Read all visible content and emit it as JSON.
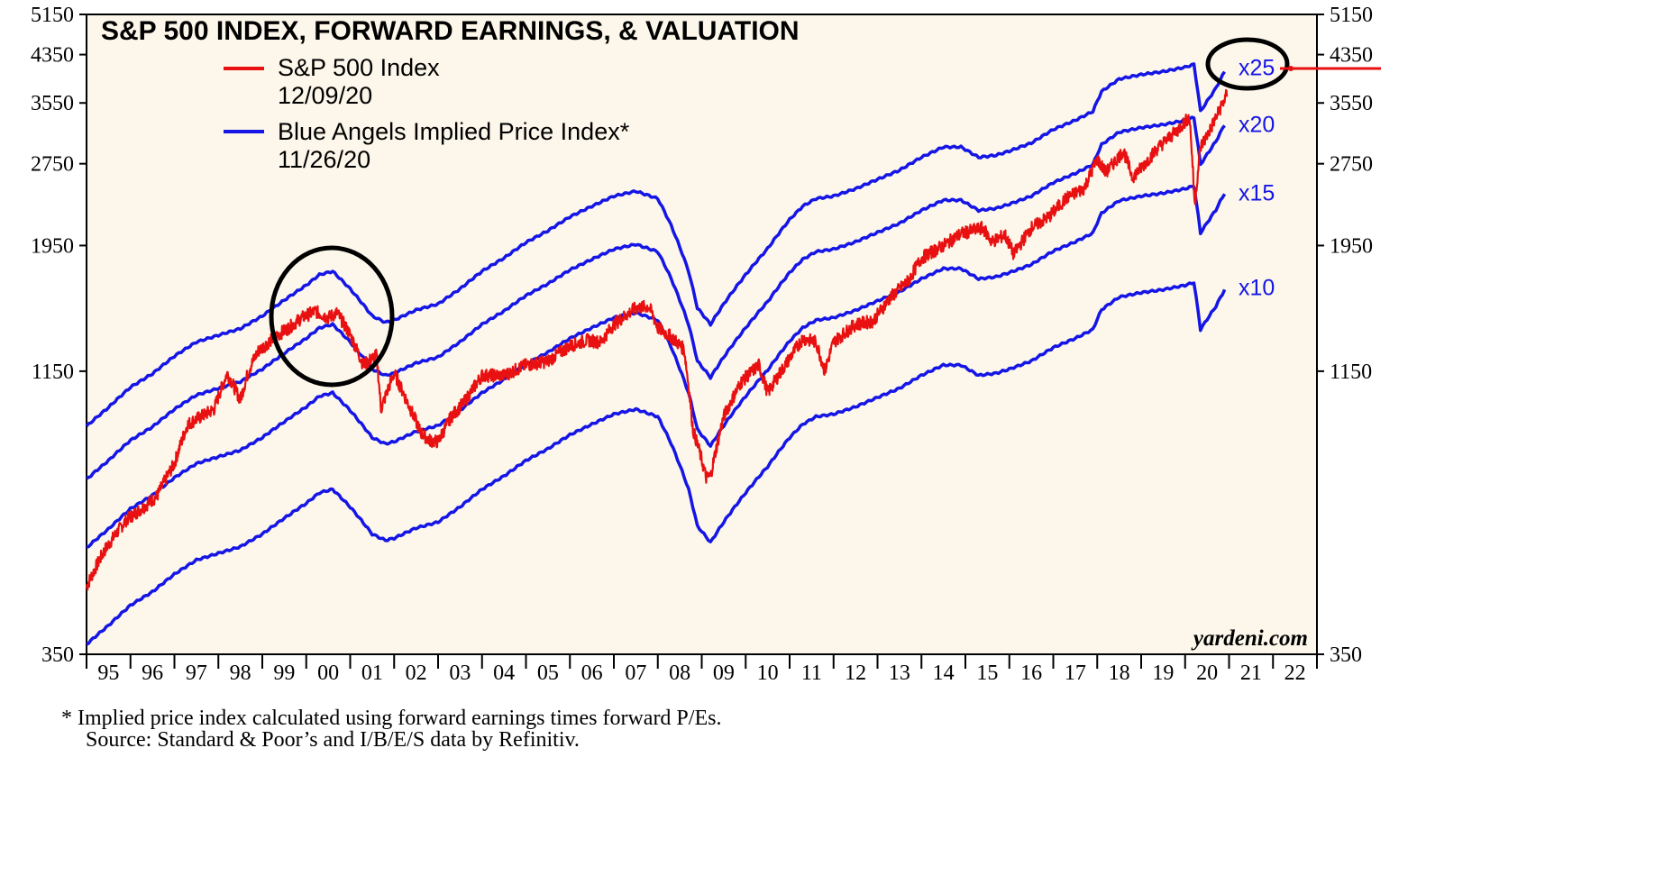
{
  "chart_data": {
    "type": "line",
    "title": "S&P 500 INDEX, FORWARD EARNINGS, & VALUATION",
    "y_scale": "log",
    "ylim": [
      350,
      5150
    ],
    "y_ticks": [
      "5150",
      "4350",
      "3550",
      "2750",
      "1950",
      "1150",
      "350"
    ],
    "x_range": [
      1995,
      2023
    ],
    "x_ticks": [
      "95",
      "96",
      "97",
      "98",
      "99",
      "00",
      "01",
      "02",
      "03",
      "04",
      "05",
      "06",
      "07",
      "08",
      "09",
      "10",
      "11",
      "12",
      "13",
      "14",
      "15",
      "16",
      "17",
      "18",
      "19",
      "20",
      "21",
      "22"
    ],
    "legend": [
      {
        "label": "S&P 500 Index",
        "date": "12/09/20",
        "color": "#e81010"
      },
      {
        "label": "Blue Angels Implied Price Index*",
        "date": "11/26/20",
        "color": "#1515e6"
      }
    ],
    "multiples": [
      "x25",
      "x20",
      "x15",
      "x10"
    ],
    "forward_earnings": {
      "x": [
        1995.0,
        1995.5,
        1996.0,
        1996.5,
        1997.0,
        1997.5,
        1998.0,
        1998.5,
        1999.0,
        1999.5,
        2000.0,
        2000.3,
        2000.6,
        2001.0,
        2001.5,
        2001.8,
        2002.0,
        2002.5,
        2003.0,
        2003.5,
        2004.0,
        2004.5,
        2005.0,
        2005.5,
        2006.0,
        2006.5,
        2007.0,
        2007.5,
        2008.0,
        2008.3,
        2008.7,
        2008.9,
        2009.2,
        2009.5,
        2010.0,
        2010.5,
        2011.0,
        2011.3,
        2011.6,
        2012.0,
        2012.5,
        2013.0,
        2013.5,
        2014.0,
        2014.5,
        2014.9,
        2015.3,
        2015.7,
        2016.0,
        2016.5,
        2017.0,
        2017.5,
        2017.9,
        2018.1,
        2018.5,
        2019.0,
        2019.5,
        2020.0,
        2020.2,
        2020.35,
        2020.5,
        2020.7,
        2020.9
      ],
      "values": [
        36.5,
        39.5,
        43,
        45.5,
        49,
        52,
        53.5,
        55,
        58,
        62,
        66,
        69,
        70,
        65,
        58,
        56.5,
        57,
        59.5,
        61,
        65,
        70,
        74,
        79,
        83,
        88,
        92,
        96,
        98,
        95,
        85,
        70,
        60,
        56,
        61,
        69,
        77,
        87,
        92,
        95,
        96,
        99,
        103,
        107,
        113,
        118,
        118,
        113,
        114,
        116,
        120,
        127,
        132,
        137,
        149,
        157,
        160,
        162,
        165,
        167,
        137,
        143,
        151,
        162
      ]
    },
    "sp500": {
      "x": [
        1995.0,
        1995.4,
        1995.9,
        1996.3,
        1996.6,
        1997.0,
        1997.3,
        1997.6,
        1997.9,
        1998.2,
        1998.5,
        1998.7,
        1998.9,
        1999.3,
        1999.6,
        1999.9,
        2000.2,
        2000.5,
        2000.7,
        2001.0,
        2001.3,
        2001.6,
        2001.7,
        2002.0,
        2002.3,
        2002.6,
        2002.8,
        2003.0,
        2003.3,
        2003.6,
        2004.0,
        2004.5,
        2005.0,
        2005.5,
        2006.0,
        2006.4,
        2006.7,
        2007.0,
        2007.5,
        2007.8,
        2008.0,
        2008.3,
        2008.6,
        2008.8,
        2008.95,
        2009.1,
        2009.2,
        2009.5,
        2009.9,
        2010.3,
        2010.5,
        2010.9,
        2011.3,
        2011.6,
        2011.8,
        2012.0,
        2012.5,
        2012.9,
        2013.3,
        2013.7,
        2014.0,
        2014.5,
        2014.9,
        2015.4,
        2015.6,
        2015.9,
        2016.1,
        2016.5,
        2016.9,
        2017.3,
        2017.7,
        2018.0,
        2018.2,
        2018.6,
        2018.8,
        2019.0,
        2019.4,
        2019.8,
        2020.1,
        2020.22,
        2020.35,
        2020.55,
        2020.75,
        2020.95
      ],
      "values": [
        465,
        540,
        615,
        650,
        680,
        780,
        920,
        950,
        980,
        1140,
        1020,
        1160,
        1250,
        1330,
        1380,
        1440,
        1480,
        1440,
        1470,
        1340,
        1180,
        1230,
        980,
        1140,
        1010,
        890,
        860,
        855,
        950,
        1010,
        1130,
        1130,
        1180,
        1200,
        1280,
        1310,
        1300,
        1400,
        1500,
        1510,
        1380,
        1330,
        1260,
        900,
        820,
        735,
        740,
        950,
        1100,
        1180,
        1050,
        1180,
        1320,
        1300,
        1150,
        1300,
        1400,
        1420,
        1570,
        1680,
        1850,
        1950,
        2050,
        2100,
        1980,
        2040,
        1880,
        2100,
        2200,
        2380,
        2480,
        2800,
        2650,
        2900,
        2600,
        2700,
        2950,
        3150,
        3350,
        2300,
        2950,
        3150,
        3400,
        3680
      ]
    },
    "annotations": [
      "circle around 2000 peak",
      "circle around x25 line at end of 2020",
      "red marker line at 3700"
    ],
    "credit": "yardeni.com",
    "footnote": "*  Implied price index calculated using forward earnings times forward P/Es.",
    "source": "Source: Standard & Poor’s and I/B/E/S data by Refinitiv."
  },
  "colors": {
    "plot_bg": "#fcf7ea",
    "sp500": "#e81010",
    "angels": "#1515e6",
    "circle": "#000000"
  }
}
